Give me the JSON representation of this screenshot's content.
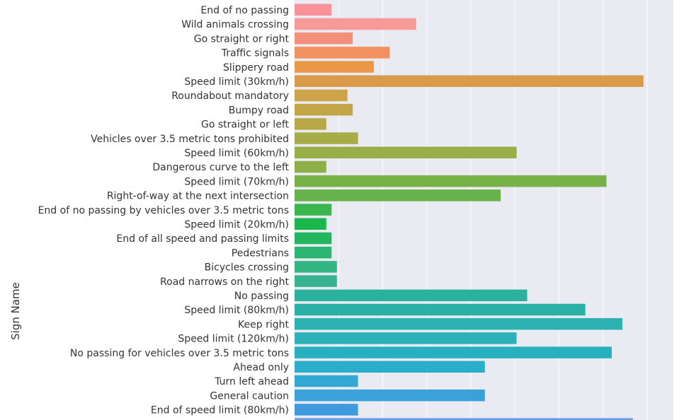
{
  "chart_data": {
    "type": "bar",
    "orientation": "horizontal",
    "ylabel": "Sign Name",
    "grid": true,
    "categories": [
      "End of no passing",
      "Wild animals crossing",
      "Go straight or right",
      "Traffic signals",
      "Slippery road",
      "Speed limit (30km/h)",
      "Roundabout mandatory",
      "Bumpy road",
      "Go straight or left",
      "Vehicles over 3.5 metric tons prohibited",
      "Speed limit (60km/h)",
      "Dangerous curve to the left",
      "Speed limit (70km/h)",
      "Right-of-way at the next intersection",
      "End of no passing by vehicles over 3.5 metric tons",
      "Speed limit (20km/h)",
      "End of all speed and passing limits",
      "Pedestrians",
      "Bicycles crossing",
      "Road narrows on the right",
      "No passing",
      "Speed limit (80km/h)",
      "Keep right",
      "Speed limit (120km/h)",
      "No passing for vehicles over 3.5 metric tons",
      "Ahead only",
      "Turn left ahead",
      "General caution",
      "End of speed limit (80km/h)"
    ],
    "values": [
      210,
      690,
      330,
      540,
      450,
      1980,
      300,
      330,
      180,
      360,
      1260,
      180,
      1770,
      1170,
      210,
      180,
      210,
      210,
      240,
      240,
      1320,
      1650,
      1860,
      1260,
      1800,
      1080,
      360,
      1080,
      360
    ],
    "xlim": [
      0,
      2150
    ],
    "x_gridlines": [
      250,
      500,
      750,
      1000,
      1250,
      1500,
      1750,
      2000
    ],
    "colors": [
      "#f8919a",
      "#f89a98",
      "#f38f7b",
      "#f0915f",
      "#ea9748",
      "#d99b4a",
      "#cda449",
      "#c2a646",
      "#b9a84a",
      "#a8ac48",
      "#98ae48",
      "#8db049",
      "#79b149",
      "#68b24b",
      "#3bb54e",
      "#1cb74c",
      "#23b65f",
      "#2cb672",
      "#33b584",
      "#37b48f",
      "#2ab29f",
      "#29b1a8",
      "#2cb2b1",
      "#2db2bb",
      "#26b1c1",
      "#2aaecc",
      "#33a8d2",
      "#3aa2d8",
      "#3f9ade",
      "#6e9de6"
    ],
    "partial_last_bar_value": 1920
  }
}
